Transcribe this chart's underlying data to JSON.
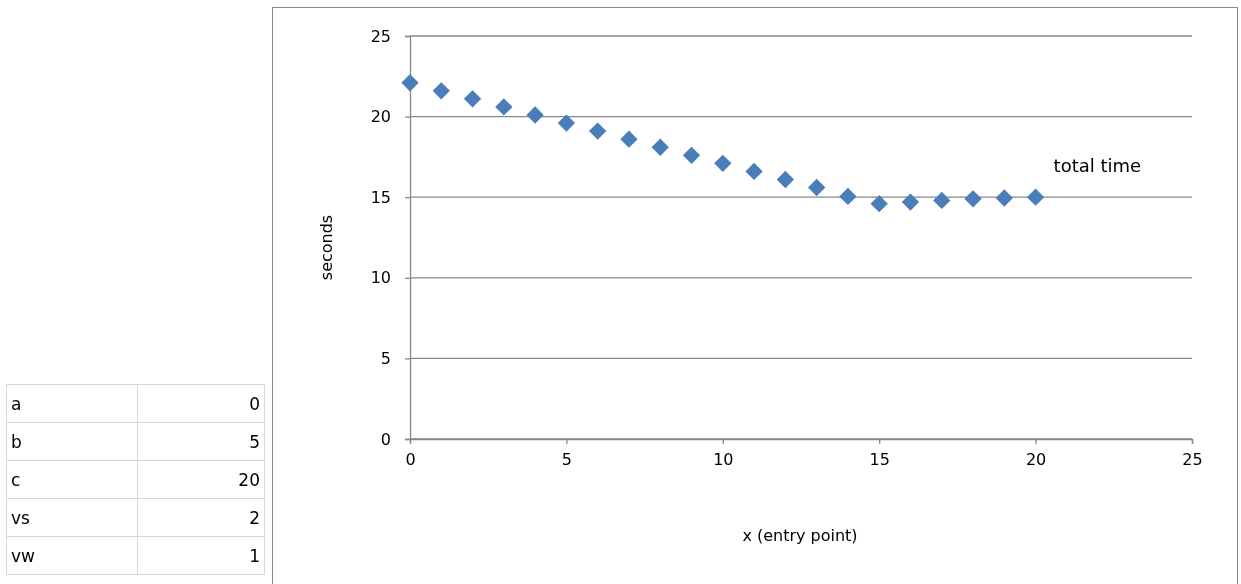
{
  "chart_data": {
    "type": "scatter",
    "xlabel": "x (entry point)",
    "ylabel": "seconds",
    "x": [
      0,
      1,
      2,
      3,
      4,
      5,
      6,
      7,
      8,
      9,
      10,
      11,
      12,
      13,
      14,
      15,
      16,
      17,
      18,
      19,
      20
    ],
    "series": [
      {
        "name": "total time",
        "color": "#4a7ebb",
        "values": [
          22.1,
          21.6,
          21.1,
          20.6,
          20.1,
          19.6,
          19.1,
          18.6,
          18.1,
          17.6,
          17.1,
          16.6,
          16.1,
          15.6,
          15.05,
          14.6,
          14.7,
          14.8,
          14.9,
          14.95,
          15.0
        ]
      }
    ],
    "xlim": [
      0,
      25
    ],
    "xticks": [
      0,
      5,
      10,
      15,
      20,
      25
    ],
    "ylim": [
      0,
      25
    ],
    "yticks": [
      0,
      5,
      10,
      15,
      20,
      25
    ],
    "grid": "y",
    "marker": "diamond",
    "annotations": [
      "a",
      "0",
      "b",
      "5",
      "c",
      "20",
      "vs",
      "2",
      "vw",
      "1"
    ]
  }
}
